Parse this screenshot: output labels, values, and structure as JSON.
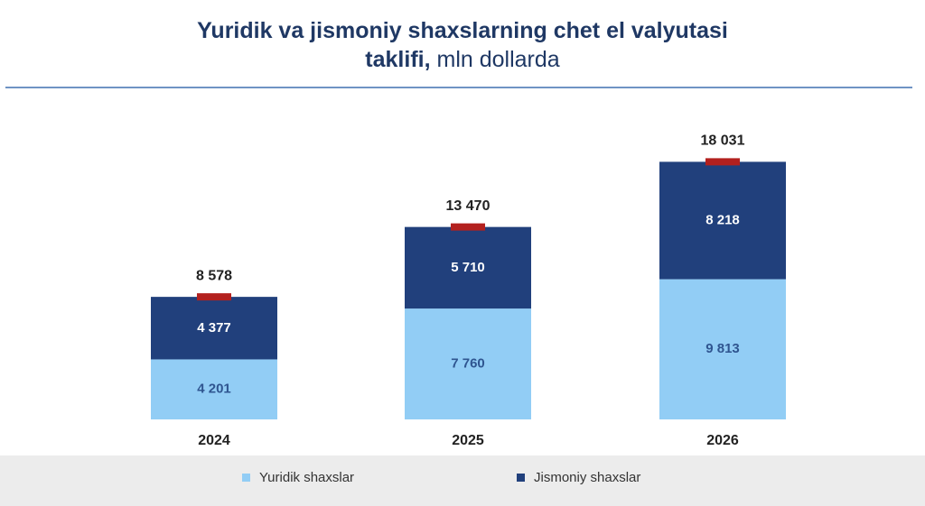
{
  "title_line1": "Yuridik va jismoniy shaxslarning chet el valyutasi",
  "title_line2_bold": "taklifi,",
  "title_line2_rest": "mln dollarda",
  "chart_data": {
    "type": "bar",
    "stacked": true,
    "categories": [
      "2024",
      "2025",
      "2026"
    ],
    "series": [
      {
        "name": "Yuridik shaxslar",
        "values": [
          4201,
          7760,
          9813
        ],
        "value_labels": [
          "4 201",
          "7 760",
          "9 813"
        ],
        "color": "#92cdf5"
      },
      {
        "name": "Jismoniy shaxslar",
        "values": [
          4377,
          5710,
          8218
        ],
        "value_labels": [
          "4 377",
          "5 710",
          "8 218"
        ],
        "color": "#21407c"
      }
    ],
    "totals": [
      8578,
      13470,
      18031
    ],
    "total_labels": [
      "8 578",
      "13 470",
      "18 031"
    ],
    "total_marker_color": "#b3201e",
    "legend_position": "bottom"
  },
  "legend": [
    {
      "label": "Yuridik shaxslar",
      "color": "#92cdf5"
    },
    {
      "label": "Jismoniy shaxslar",
      "color": "#21407c"
    }
  ]
}
